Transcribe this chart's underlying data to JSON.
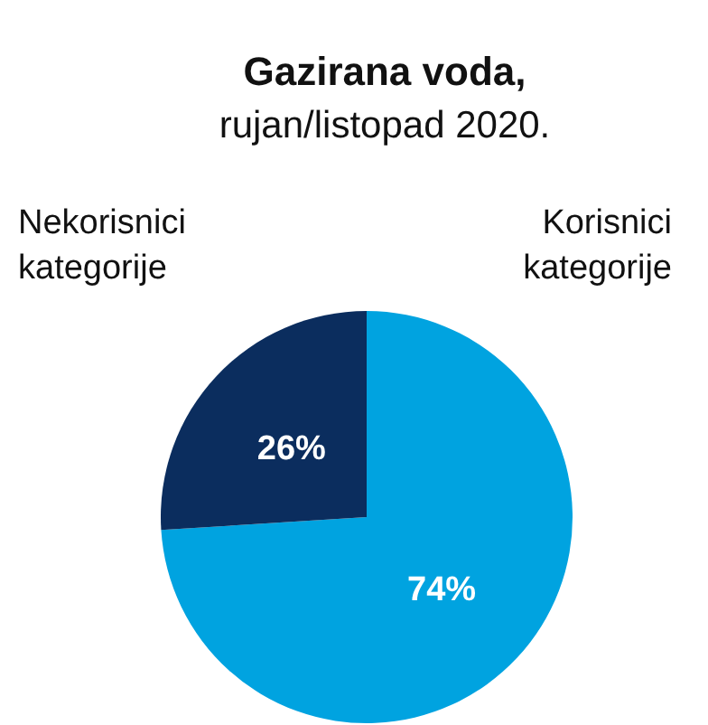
{
  "chart_data": {
    "type": "pie",
    "title": "Gazirana voda,",
    "subtitle": "rujan/listopad 2020.",
    "categories": [
      "Korisnici kategorije",
      "Nekorisnici kategorije"
    ],
    "values": [
      74,
      26
    ],
    "colors": [
      "#00a3e0",
      "#0b2d5e"
    ],
    "value_labels": [
      "74%",
      "26%"
    ]
  }
}
